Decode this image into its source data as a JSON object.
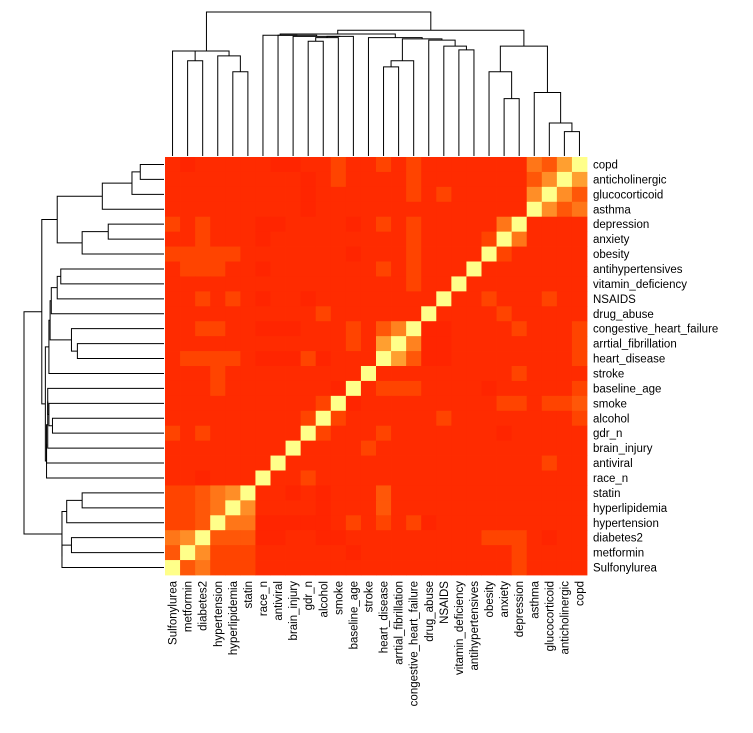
{
  "chart_data": {
    "type": "heatmap",
    "title": "",
    "xlabel": "",
    "ylabel": "",
    "legend": "none",
    "color_scale": [
      "#ff2200",
      "#ff4400",
      "#ff6a10",
      "#ff9a2e",
      "#ffd040",
      "#ffff8a"
    ],
    "columns": [
      "Sulfonylurea",
      "metformin",
      "diabetes2",
      "hypertension",
      "hyperlipidemia",
      "statin",
      "race_n",
      "antiviral",
      "brain_injury",
      "gdr_n",
      "alcohol",
      "smoke",
      "baseline_age",
      "stroke",
      "heart_disease",
      "arrtial_fibrillation",
      "congestive_heart_failure",
      "drug_abuse",
      "NSAIDS",
      "vitamin_deficiency",
      "antihypertensives",
      "obesity",
      "anxiety",
      "depression",
      "asthma",
      "glucocorticoid",
      "anticholinergic",
      "copd"
    ],
    "rows": [
      "copd",
      "anticholinergic",
      "glucocorticoid",
      "asthma",
      "depression",
      "anxiety",
      "obesity",
      "antihypertensives",
      "vitamin_deficiency",
      "NSAIDS",
      "drug_abuse",
      "congestive_heart_failure",
      "arrtial_fibrillation",
      "heart_disease",
      "stroke",
      "baseline_age",
      "smoke",
      "alcohol",
      "gdr_n",
      "brain_injury",
      "antiviral",
      "race_n",
      "statin",
      "hyperlipidemia",
      "hypertension",
      "diabetes2",
      "metformin",
      "Sulfonylurea"
    ],
    "values": [
      [
        0.05,
        0.02,
        0.05,
        0.05,
        0.05,
        0.05,
        0.05,
        0.02,
        0.02,
        0.05,
        0.05,
        0.2,
        0.05,
        0.05,
        0.2,
        0.05,
        0.2,
        0.05,
        0.05,
        0.05,
        0.05,
        0.05,
        0.05,
        0.05,
        0.45,
        0.3,
        0.62,
        1.0
      ],
      [
        0.05,
        0.05,
        0.05,
        0.05,
        0.05,
        0.05,
        0.05,
        0.05,
        0.05,
        0.02,
        0.05,
        0.2,
        0.05,
        0.05,
        0.05,
        0.05,
        0.2,
        0.05,
        0.05,
        0.05,
        0.05,
        0.05,
        0.05,
        0.05,
        0.3,
        0.55,
        1.0,
        0.62
      ],
      [
        0.05,
        0.05,
        0.05,
        0.05,
        0.05,
        0.05,
        0.05,
        0.05,
        0.05,
        0.02,
        0.05,
        0.05,
        0.05,
        0.05,
        0.05,
        0.05,
        0.2,
        0.05,
        0.2,
        0.05,
        0.05,
        0.05,
        0.05,
        0.05,
        0.55,
        1.0,
        0.55,
        0.3
      ],
      [
        0.05,
        0.05,
        0.05,
        0.05,
        0.05,
        0.05,
        0.05,
        0.05,
        0.05,
        0.02,
        0.05,
        0.05,
        0.05,
        0.05,
        0.05,
        0.05,
        0.05,
        0.05,
        0.05,
        0.05,
        0.05,
        0.05,
        0.05,
        0.05,
        1.0,
        0.55,
        0.3,
        0.45
      ],
      [
        0.2,
        0.05,
        0.2,
        0.05,
        0.05,
        0.05,
        0.02,
        0.02,
        0.05,
        0.05,
        0.05,
        0.05,
        0.02,
        0.05,
        0.2,
        0.05,
        0.2,
        0.05,
        0.05,
        0.05,
        0.05,
        0.05,
        0.45,
        1.0,
        0.05,
        0.05,
        0.05,
        0.05
      ],
      [
        0.05,
        0.05,
        0.2,
        0.05,
        0.05,
        0.05,
        0.02,
        0.05,
        0.05,
        0.05,
        0.05,
        0.05,
        0.05,
        0.05,
        0.05,
        0.05,
        0.2,
        0.05,
        0.05,
        0.05,
        0.05,
        0.2,
        1.0,
        0.45,
        0.05,
        0.05,
        0.05,
        0.05
      ],
      [
        0.2,
        0.2,
        0.2,
        0.2,
        0.2,
        0.05,
        0.05,
        0.05,
        0.05,
        0.05,
        0.05,
        0.05,
        0.02,
        0.05,
        0.05,
        0.05,
        0.2,
        0.05,
        0.05,
        0.05,
        0.05,
        1.0,
        0.2,
        0.05,
        0.05,
        0.05,
        0.05,
        0.05
      ],
      [
        0.05,
        0.2,
        0.2,
        0.2,
        0.05,
        0.05,
        0.02,
        0.05,
        0.05,
        0.05,
        0.05,
        0.05,
        0.05,
        0.05,
        0.2,
        0.05,
        0.2,
        0.05,
        0.05,
        0.05,
        1.0,
        0.05,
        0.05,
        0.05,
        0.05,
        0.05,
        0.05,
        0.05
      ],
      [
        0.05,
        0.05,
        0.05,
        0.05,
        0.05,
        0.05,
        0.05,
        0.05,
        0.05,
        0.05,
        0.05,
        0.05,
        0.05,
        0.05,
        0.05,
        0.05,
        0.2,
        0.05,
        0.05,
        1.0,
        0.05,
        0.05,
        0.05,
        0.05,
        0.05,
        0.05,
        0.05,
        0.05
      ],
      [
        0.05,
        0.05,
        0.2,
        0.05,
        0.2,
        0.05,
        0.02,
        0.05,
        0.05,
        0.02,
        0.05,
        0.05,
        0.05,
        0.05,
        0.05,
        0.05,
        0.05,
        0.05,
        1.0,
        0.05,
        0.05,
        0.2,
        0.05,
        0.05,
        0.05,
        0.2,
        0.05,
        0.05
      ],
      [
        0.05,
        0.05,
        0.05,
        0.05,
        0.05,
        0.05,
        0.05,
        0.05,
        0.05,
        0.05,
        0.2,
        0.05,
        0.05,
        0.05,
        0.05,
        0.05,
        0.05,
        1.0,
        0.05,
        0.05,
        0.05,
        0.05,
        0.2,
        0.05,
        0.05,
        0.05,
        0.05,
        0.05
      ],
      [
        0.05,
        0.05,
        0.2,
        0.2,
        0.05,
        0.05,
        0.02,
        0.02,
        0.02,
        0.05,
        0.05,
        0.05,
        0.2,
        0.05,
        0.3,
        0.5,
        1.0,
        0.02,
        0.02,
        0.05,
        0.05,
        0.05,
        0.05,
        0.2,
        0.05,
        0.05,
        0.05,
        0.2
      ],
      [
        0.05,
        0.05,
        0.05,
        0.05,
        0.05,
        0.05,
        0.05,
        0.05,
        0.05,
        0.05,
        0.05,
        0.05,
        0.2,
        0.05,
        0.62,
        1.0,
        0.5,
        0.02,
        0.02,
        0.05,
        0.05,
        0.05,
        0.05,
        0.05,
        0.05,
        0.05,
        0.05,
        0.2
      ],
      [
        0.05,
        0.2,
        0.2,
        0.2,
        0.2,
        0.05,
        0.02,
        0.02,
        0.02,
        0.2,
        0.02,
        0.05,
        0.05,
        0.05,
        1.0,
        0.62,
        0.3,
        0.02,
        0.02,
        0.05,
        0.05,
        0.05,
        0.05,
        0.05,
        0.05,
        0.05,
        0.05,
        0.2
      ],
      [
        0.05,
        0.05,
        0.05,
        0.2,
        0.05,
        0.05,
        0.05,
        0.05,
        0.05,
        0.05,
        0.05,
        0.05,
        0.05,
        1.0,
        0.05,
        0.05,
        0.05,
        0.05,
        0.05,
        0.05,
        0.05,
        0.05,
        0.05,
        0.2,
        0.05,
        0.05,
        0.05,
        0.05
      ],
      [
        0.05,
        0.05,
        0.05,
        0.2,
        0.05,
        0.05,
        0.05,
        0.05,
        0.05,
        0.05,
        0.05,
        0.02,
        1.0,
        0.05,
        0.2,
        0.2,
        0.2,
        0.05,
        0.05,
        0.05,
        0.05,
        0.02,
        0.05,
        0.05,
        0.05,
        0.05,
        0.05,
        0.2
      ],
      [
        0.05,
        0.05,
        0.05,
        0.05,
        0.05,
        0.05,
        0.05,
        0.05,
        0.05,
        0.05,
        0.2,
        1.0,
        0.02,
        0.05,
        0.05,
        0.05,
        0.05,
        0.05,
        0.05,
        0.05,
        0.05,
        0.05,
        0.2,
        0.2,
        0.05,
        0.2,
        0.2,
        0.3
      ],
      [
        0.05,
        0.05,
        0.05,
        0.05,
        0.05,
        0.05,
        0.05,
        0.05,
        0.05,
        0.2,
        1.0,
        0.2,
        0.05,
        0.05,
        0.05,
        0.05,
        0.05,
        0.05,
        0.2,
        0.05,
        0.05,
        0.05,
        0.05,
        0.05,
        0.05,
        0.05,
        0.05,
        0.2
      ],
      [
        0.2,
        0.05,
        0.2,
        0.05,
        0.05,
        0.05,
        0.05,
        0.05,
        0.05,
        1.0,
        0.2,
        0.05,
        0.05,
        0.05,
        0.2,
        0.05,
        0.05,
        0.05,
        0.05,
        0.05,
        0.05,
        0.05,
        0.02,
        0.05,
        0.05,
        0.05,
        0.05,
        0.05
      ],
      [
        0.05,
        0.05,
        0.05,
        0.05,
        0.05,
        0.05,
        0.05,
        0.05,
        1.0,
        0.05,
        0.05,
        0.05,
        0.05,
        0.2,
        0.05,
        0.05,
        0.05,
        0.05,
        0.05,
        0.05,
        0.05,
        0.05,
        0.05,
        0.05,
        0.05,
        0.05,
        0.05,
        0.05
      ],
      [
        0.05,
        0.05,
        0.05,
        0.05,
        0.05,
        0.05,
        0.05,
        1.0,
        0.05,
        0.05,
        0.05,
        0.05,
        0.05,
        0.05,
        0.05,
        0.05,
        0.05,
        0.05,
        0.05,
        0.05,
        0.05,
        0.05,
        0.05,
        0.05,
        0.05,
        0.2,
        0.05,
        0.05
      ],
      [
        0.05,
        0.05,
        0.02,
        0.05,
        0.05,
        0.05,
        1.0,
        0.05,
        0.05,
        0.2,
        0.05,
        0.05,
        0.05,
        0.05,
        0.05,
        0.05,
        0.05,
        0.05,
        0.05,
        0.05,
        0.05,
        0.05,
        0.05,
        0.05,
        0.05,
        0.05,
        0.05,
        0.05
      ],
      [
        0.2,
        0.2,
        0.3,
        0.45,
        0.55,
        1.0,
        0.05,
        0.05,
        0.02,
        0.05,
        0.02,
        0.05,
        0.05,
        0.05,
        0.3,
        0.05,
        0.05,
        0.05,
        0.05,
        0.05,
        0.05,
        0.05,
        0.05,
        0.05,
        0.05,
        0.05,
        0.05,
        0.05
      ],
      [
        0.2,
        0.2,
        0.3,
        0.45,
        1.0,
        0.55,
        0.05,
        0.05,
        0.05,
        0.05,
        0.02,
        0.05,
        0.05,
        0.05,
        0.3,
        0.05,
        0.05,
        0.05,
        0.05,
        0.05,
        0.05,
        0.05,
        0.05,
        0.05,
        0.05,
        0.05,
        0.05,
        0.05
      ],
      [
        0.2,
        0.2,
        0.3,
        1.0,
        0.45,
        0.45,
        0.02,
        0.02,
        0.02,
        0.02,
        0.02,
        0.05,
        0.2,
        0.05,
        0.2,
        0.05,
        0.2,
        0.02,
        0.05,
        0.05,
        0.05,
        0.05,
        0.05,
        0.05,
        0.05,
        0.05,
        0.05,
        0.05
      ],
      [
        0.45,
        0.55,
        1.0,
        0.3,
        0.3,
        0.3,
        0.02,
        0.02,
        0.05,
        0.05,
        0.02,
        0.02,
        0.05,
        0.05,
        0.05,
        0.05,
        0.05,
        0.05,
        0.05,
        0.05,
        0.05,
        0.2,
        0.2,
        0.2,
        0.05,
        0.02,
        0.05,
        0.05
      ],
      [
        0.3,
        1.0,
        0.55,
        0.2,
        0.2,
        0.2,
        0.05,
        0.05,
        0.05,
        0.05,
        0.05,
        0.05,
        0.02,
        0.05,
        0.05,
        0.05,
        0.05,
        0.05,
        0.05,
        0.05,
        0.05,
        0.05,
        0.05,
        0.2,
        0.05,
        0.05,
        0.05,
        0.05
      ],
      [
        1.0,
        0.3,
        0.45,
        0.2,
        0.2,
        0.2,
        0.05,
        0.05,
        0.05,
        0.05,
        0.05,
        0.05,
        0.05,
        0.05,
        0.05,
        0.05,
        0.05,
        0.05,
        0.05,
        0.05,
        0.05,
        0.05,
        0.05,
        0.2,
        0.05,
        0.05,
        0.05,
        0.05
      ]
    ],
    "col_dendrogram": [
      [
        26,
        27,
        0.2
      ],
      [
        28,
        25,
        0.27
      ],
      [
        29,
        24,
        0.52
      ],
      [
        22,
        23,
        0.47
      ],
      [
        31,
        21,
        0.69
      ],
      [
        32,
        30,
        0.9
      ],
      [
        19,
        20,
        0.87
      ],
      [
        34,
        18,
        0.9
      ],
      [
        17,
        35,
        0.95
      ],
      [
        14,
        15,
        0.73
      ],
      [
        37,
        16,
        0.78
      ],
      [
        38,
        36,
        0.96
      ],
      [
        13,
        39,
        0.97
      ],
      [
        9,
        10,
        0.94
      ],
      [
        41,
        11,
        0.97
      ],
      [
        12,
        42,
        0.98
      ],
      [
        43,
        8,
        0.98
      ],
      [
        7,
        44,
        0.99
      ],
      [
        6,
        45,
        0.99
      ],
      [
        46,
        40,
        1.0
      ],
      [
        47,
        33,
        1.03
      ],
      [
        4,
        5,
        0.69
      ],
      [
        49,
        3,
        0.82
      ],
      [
        1,
        2,
        0.78
      ],
      [
        0,
        51,
        0.86
      ],
      [
        52,
        50,
        0.86
      ],
      [
        48,
        53,
        1.18
      ]
    ],
    "row_dendrogram": [
      [
        1,
        0,
        0.2
      ],
      [
        2,
        28,
        0.27
      ],
      [
        3,
        29,
        0.52
      ],
      [
        5,
        4,
        0.47
      ],
      [
        6,
        31,
        0.69
      ],
      [
        32,
        30,
        0.9
      ],
      [
        8,
        7,
        0.87
      ],
      [
        9,
        34,
        0.9
      ],
      [
        35,
        10,
        0.95
      ],
      [
        13,
        12,
        0.73
      ],
      [
        11,
        37,
        0.78
      ],
      [
        36,
        38,
        0.96
      ],
      [
        39,
        14,
        0.97
      ],
      [
        18,
        17,
        0.94
      ],
      [
        16,
        41,
        0.97
      ],
      [
        42,
        15,
        0.98
      ],
      [
        19,
        43,
        0.98
      ],
      [
        44,
        20,
        0.99
      ],
      [
        45,
        21,
        0.99
      ],
      [
        40,
        46,
        1.0
      ],
      [
        33,
        47,
        1.03
      ],
      [
        23,
        22,
        0.69
      ],
      [
        24,
        49,
        0.82
      ],
      [
        26,
        25,
        0.78
      ],
      [
        51,
        27,
        0.86
      ],
      [
        50,
        52,
        0.86
      ],
      [
        53,
        48,
        1.18
      ]
    ]
  }
}
